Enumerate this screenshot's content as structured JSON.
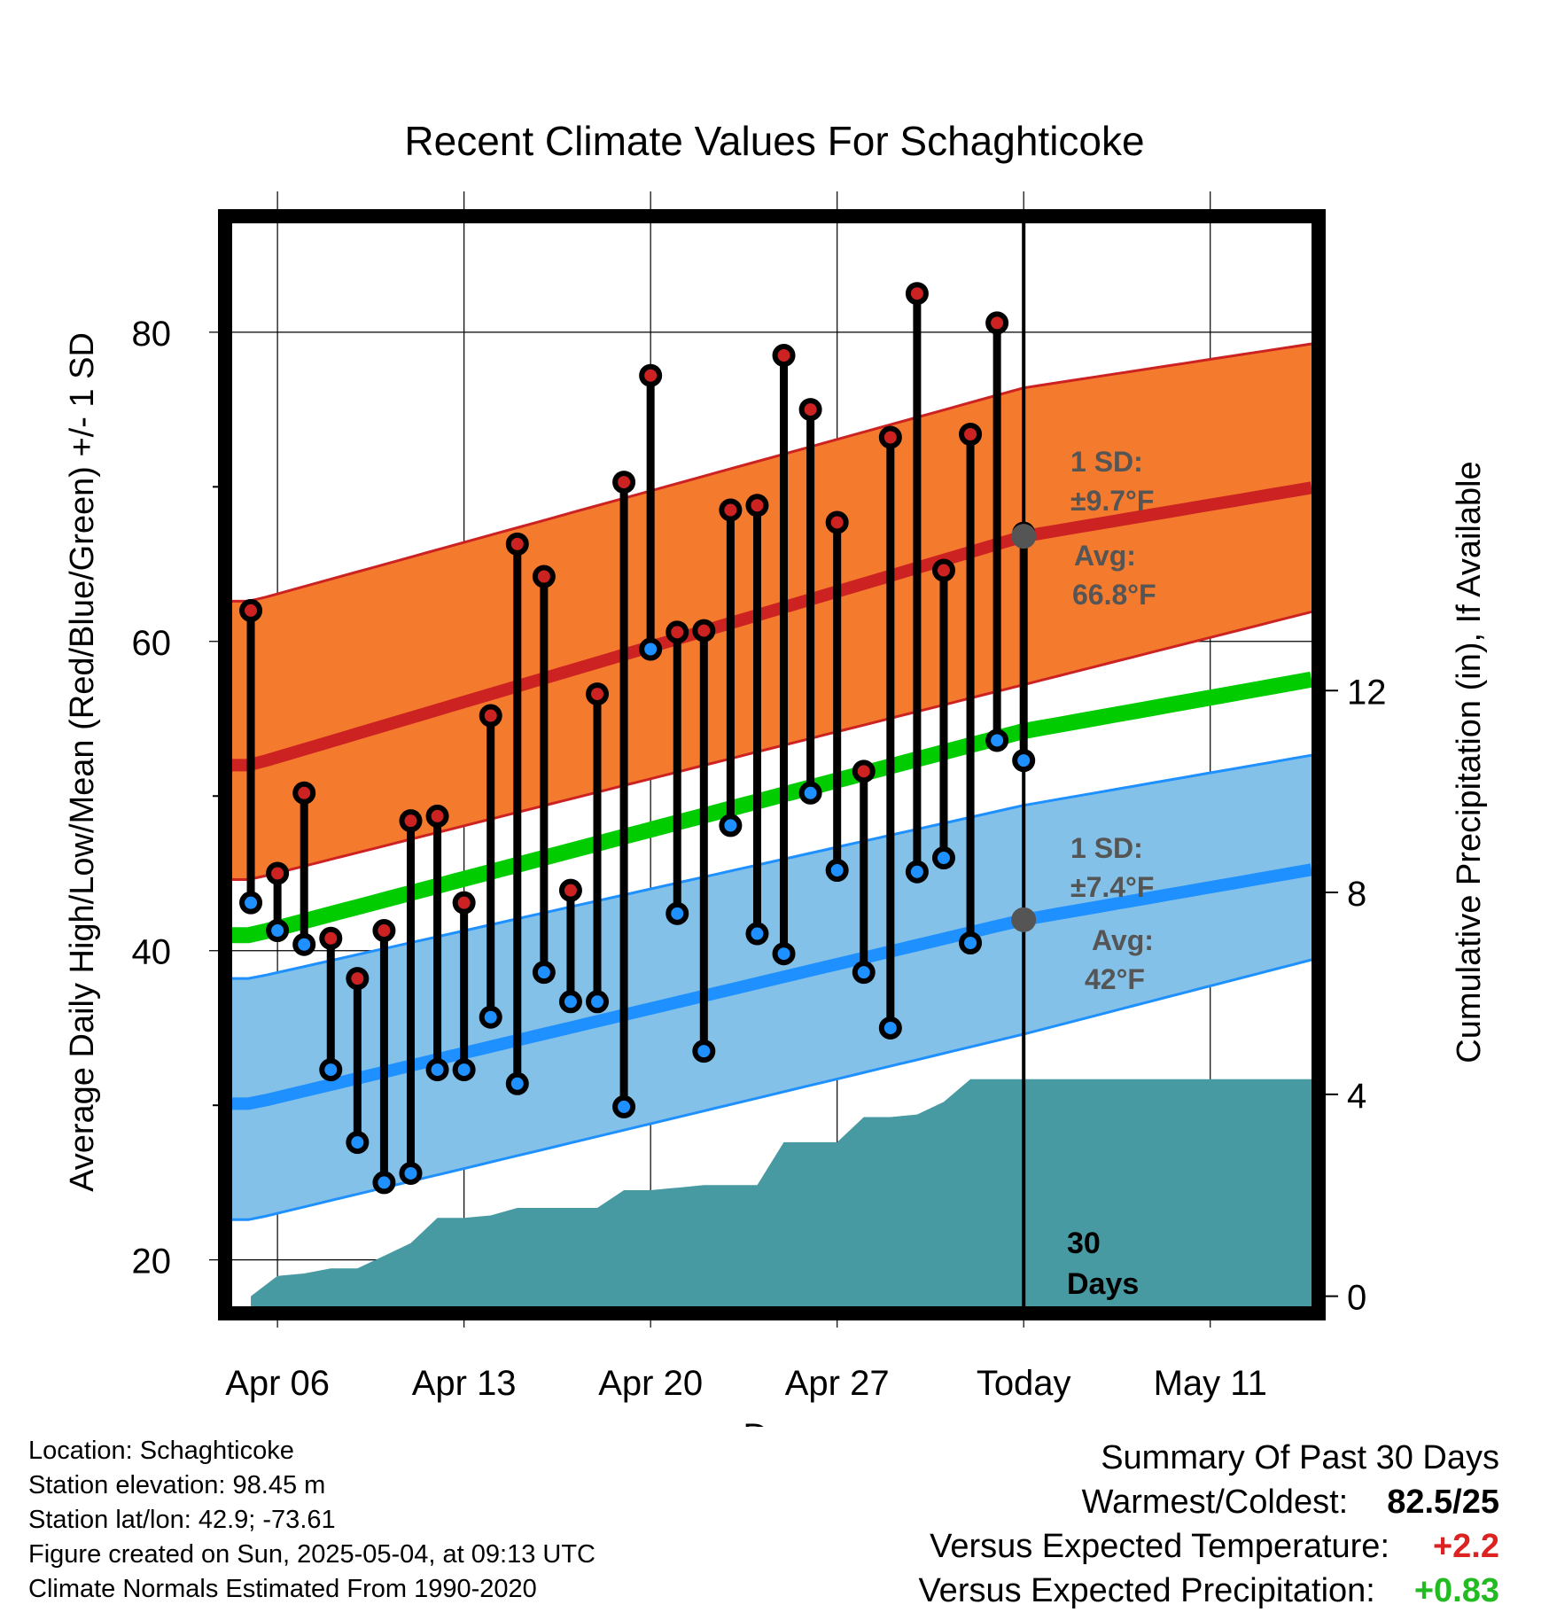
{
  "chart_data": {
    "type": "line",
    "title": "Recent Climate Values For Schaghticoke",
    "xlabel": "Day",
    "ylabel_left": "Average Daily High/Low/Mean (Red/Blue/Green) +/- 1 SD",
    "ylabel_right": "Cumulative Precipitation (in), If Available",
    "x_ticks": [
      {
        "day": 5,
        "label": "Apr 06"
      },
      {
        "day": 12,
        "label": "Apr 13"
      },
      {
        "day": 19,
        "label": "Apr 20"
      },
      {
        "day": 26,
        "label": "Apr 27"
      },
      {
        "day": 33,
        "label": "Today"
      },
      {
        "day": 40,
        "label": "May 11"
      }
    ],
    "xlim_days": [
      3.3,
      43.8
    ],
    "ylim_left": [
      17,
      87.5
    ],
    "y_ticks_left": [
      20,
      40,
      60,
      80
    ],
    "y_ticks_right": [
      0,
      4,
      8,
      12
    ],
    "ylim_right": [
      -0.2,
      21.4
    ],
    "grid": true,
    "days": [
      4,
      5,
      6,
      7,
      8,
      9,
      10,
      11,
      12,
      13,
      14,
      15,
      16,
      17,
      18,
      19,
      20,
      21,
      22,
      23,
      24,
      25,
      26,
      27,
      28,
      29,
      30,
      31,
      32,
      33
    ],
    "highs": [
      62,
      45,
      50.2,
      40.8,
      38.2,
      41.3,
      48.4,
      48.7,
      43.1,
      55.2,
      66.3,
      64.2,
      43.9,
      56.6,
      70.3,
      77.2,
      60.6,
      60.7,
      68.5,
      68.8,
      78.5,
      75,
      67.7,
      51.6,
      73.2,
      82.5,
      64.6,
      73.4,
      80.6,
      67
    ],
    "lows": [
      43.1,
      41.3,
      40.4,
      32.3,
      27.6,
      25,
      25.6,
      32.3,
      32.3,
      35.7,
      31.4,
      38.6,
      36.7,
      36.7,
      29.9,
      59.5,
      42.4,
      33.5,
      48.1,
      41.1,
      39.8,
      50.2,
      45.2,
      38.6,
      35,
      45.1,
      46,
      40.5,
      53.6,
      52.3
    ],
    "normals": {
      "x": [
        4,
        33,
        44
      ],
      "high_avg": [
        52,
        66.8,
        70
      ],
      "high_upper": [
        62.6,
        76.4,
        79.3
      ],
      "high_lower": [
        44.6,
        57.2,
        62
      ],
      "mean_avg": [
        41,
        54.2,
        57.6
      ],
      "low_avg": [
        30.1,
        42,
        45.3
      ],
      "low_upper": [
        38.2,
        49.4,
        52.7
      ],
      "low_lower": [
        22.6,
        34.6,
        39.5
      ]
    },
    "precip": {
      "days": [
        4,
        5,
        6,
        7,
        8,
        9,
        10,
        11,
        12,
        13,
        14,
        15,
        16,
        17,
        18,
        19,
        20,
        21,
        22,
        23,
        24,
        25,
        26,
        27,
        28,
        29,
        30,
        31,
        32,
        33,
        44
      ],
      "values": [
        0,
        0.4,
        0.45,
        0.55,
        0.55,
        0.8,
        1.05,
        1.55,
        1.55,
        1.6,
        1.75,
        1.75,
        1.75,
        1.75,
        2.1,
        2.1,
        2.15,
        2.2,
        2.2,
        2.2,
        3.05,
        3.05,
        3.05,
        3.55,
        3.55,
        3.6,
        3.85,
        4.3,
        4.3,
        4.3,
        4.3
      ]
    },
    "annotations": {
      "high_sd": "1 SD:",
      "high_sd_value": "±9.7°F",
      "high_avg_label": "Avg:",
      "high_avg_value": "66.8°F",
      "low_sd": "1 SD:",
      "low_sd_value": "±7.4°F",
      "low_avg_label": "Avg:",
      "low_avg_value": "42°F",
      "days_count": "30",
      "days_word": "Days"
    },
    "colors": {
      "high_band": "#f47a2e",
      "high_line": "#cc2222",
      "mean_line": "#00cc00",
      "low_band": "#84c1e8",
      "low_line": "#1e90ff",
      "precip": "#479aa2",
      "high_marker": "#cc2222",
      "low_marker": "#1e90ff"
    }
  },
  "footer": {
    "location": "Location: Schaghticoke",
    "elevation": "Station elevation: 98.45 m",
    "latlon": "Station lat/lon: 42.9; -73.61",
    "created": "Figure created on Sun, 2025-05-04, at 09:13 UTC",
    "normals": "Climate Normals Estimated From 1990-2020"
  },
  "summary": {
    "heading": "Summary Of Past 30 Days",
    "warmest_label": "Warmest/Coldest:",
    "warmest_value": "82.5/25",
    "temp_label": "Versus Expected Temperature:",
    "temp_value": "+2.2",
    "temp_color": "#dd2222",
    "precip_label": "Versus Expected Precipitation:",
    "precip_value": "+0.83",
    "precip_color": "#22bb22"
  }
}
